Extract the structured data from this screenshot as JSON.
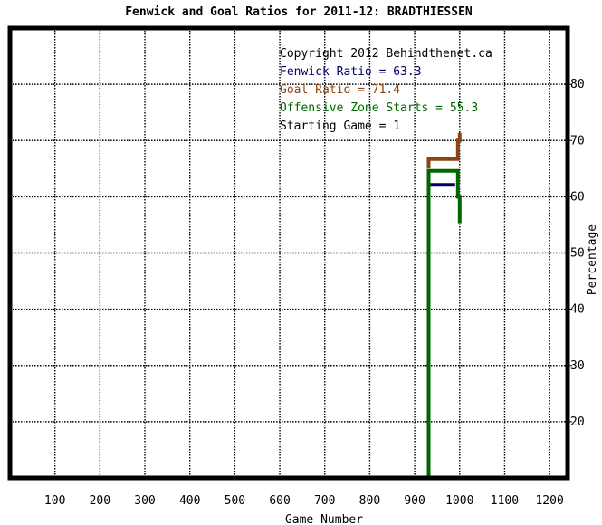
{
  "chart_data": {
    "type": "line",
    "title": "Fenwick and Goal Ratios for 2011-12: BRADTHIESSEN",
    "xlabel": "Game Number",
    "ylabel": "Percentage",
    "xlim": [
      0,
      1240
    ],
    "ylim": [
      10,
      90
    ],
    "x_ticks": [
      100,
      200,
      300,
      400,
      500,
      600,
      700,
      800,
      900,
      1000,
      1100,
      1200
    ],
    "y_ticks": [
      20,
      30,
      40,
      50,
      60,
      70,
      80
    ],
    "grid": true,
    "annotations": [
      {
        "text": "Copyright 2012 Behindthenet.ca",
        "color": "#000000"
      },
      {
        "text": "Fenwick Ratio = 63.3",
        "color": "#000066"
      },
      {
        "text": "Goal Ratio = 71.4",
        "color": "#8b4513"
      },
      {
        "text": "Offensive Zone Starts = 55.3",
        "color": "#006600"
      },
      {
        "text": "Starting Game = 1",
        "color": "#000000"
      }
    ],
    "series": [
      {
        "color": "#000066",
        "x": [
          931,
          931,
          990,
          990
        ],
        "y": [
          62,
          62.1,
          62.1,
          62.1
        ]
      },
      {
        "color": "#8b4513",
        "x": [
          931,
          931,
          996,
          996,
          1000,
          1000
        ],
        "y": [
          65,
          66.7,
          66.7,
          70,
          70,
          71.4
        ]
      },
      {
        "color": "#006600",
        "x": [
          931,
          931,
          996,
          996,
          1000,
          1000
        ],
        "y": [
          10,
          64.6,
          64.6,
          60,
          60,
          55.3
        ]
      }
    ]
  }
}
